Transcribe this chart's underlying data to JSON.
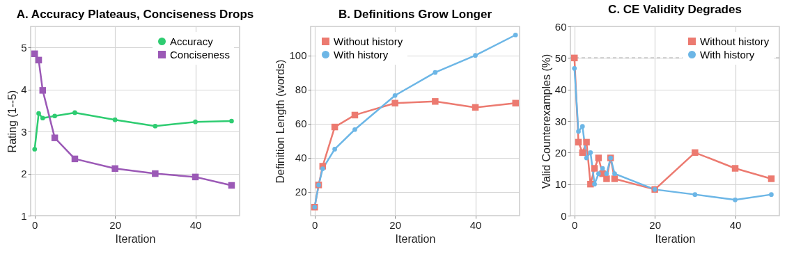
{
  "chart_data": [
    {
      "type": "line",
      "title": "A. Accuracy Plateaus, Conciseness Drops",
      "xlabel": "Iteration",
      "ylabel": "Rating (1--5)",
      "x": [
        0,
        1,
        2,
        5,
        10,
        20,
        30,
        40,
        49
      ],
      "xlim": [
        -1,
        51
      ],
      "xticks": [
        0,
        20,
        40
      ],
      "ylim": [
        1,
        5.5
      ],
      "yticks": [
        1,
        2,
        3,
        4,
        5
      ],
      "grid": true,
      "legend": "top right",
      "series": [
        {
          "name": "Accuracy",
          "color": "#2ecc71",
          "marker": "circle",
          "values": [
            2.58,
            3.43,
            3.32,
            3.37,
            3.45,
            3.28,
            3.13,
            3.23,
            3.25
          ]
        },
        {
          "name": "Conciseness",
          "color": "#9b59b6",
          "marker": "square",
          "values": [
            4.85,
            4.7,
            3.98,
            2.85,
            2.35,
            2.12,
            2.0,
            1.92,
            1.72
          ]
        }
      ]
    },
    {
      "type": "line",
      "title": "B. Definitions Grow Longer",
      "xlabel": "Iteration",
      "ylabel": "Definition Length (words)",
      "x": [
        0,
        1,
        2,
        5,
        10,
        20,
        30,
        40,
        50
      ],
      "xlim": [
        -1,
        51
      ],
      "xticks": [
        0,
        20,
        40
      ],
      "ylim": [
        6,
        117
      ],
      "yticks": [
        20,
        40,
        60,
        80,
        100
      ],
      "grid": true,
      "legend": "top left",
      "series": [
        {
          "name": "Without history",
          "color": "#ec7a70",
          "marker": "square",
          "values": [
            11,
            24,
            35,
            58,
            65,
            72,
            73,
            69.5,
            72
          ]
        },
        {
          "name": "With history",
          "color": "#6cb6e6",
          "marker": "circle",
          "values": [
            11,
            24,
            33.5,
            45,
            56.5,
            76.5,
            90,
            100,
            112
          ]
        }
      ]
    },
    {
      "type": "line",
      "title": "C. CE Validity Degrades",
      "xlabel": "Iteration",
      "ylabel": "Valid Counterexamples (%)",
      "x": [
        0,
        1,
        2,
        3,
        4,
        5,
        6,
        7,
        8,
        9,
        10,
        20,
        30,
        40,
        49
      ],
      "xlim": [
        -1,
        51
      ],
      "xticks": [
        0,
        20,
        40
      ],
      "ylim": [
        0,
        60
      ],
      "yticks": [
        0,
        10,
        20,
        30,
        40,
        50,
        60
      ],
      "grid": true,
      "legend": "top right",
      "ref_lines": [
        {
          "axis": "y",
          "value": 50,
          "color": "#b0b0b0",
          "line_style": "dashed"
        }
      ],
      "series": [
        {
          "name": "Without history",
          "color": "#ec7a70",
          "marker": "square",
          "values": [
            50,
            23.3,
            20,
            23.3,
            10,
            15,
            18.3,
            13.3,
            11.7,
            18.3,
            11.7,
            8.3,
            20,
            15,
            11.7
          ]
        },
        {
          "name": "With history",
          "color": "#6cb6e6",
          "marker": "circle",
          "values": [
            46.7,
            26.7,
            28.3,
            18.3,
            20,
            10,
            13.3,
            15,
            13.3,
            18.3,
            13.3,
            8.3,
            6.7,
            5,
            6.7
          ]
        }
      ]
    }
  ]
}
